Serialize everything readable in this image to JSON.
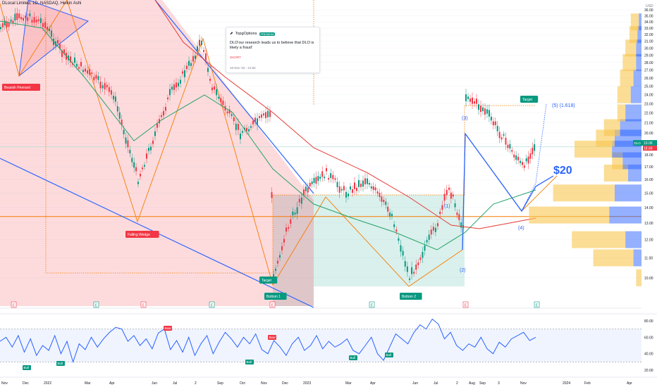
{
  "header": {
    "title": "DLocal Limited, 1D, NASDAQ, Heikin Ashi",
    "currency": "USD"
  },
  "idea_card": {
    "author": "TopgOptions",
    "badge": "PREMIUM",
    "text": "DLO'our research leads us to believe that DLO is likely a fraud'",
    "signal": "SHORT",
    "time": "16 Nov '22 - 21:52"
  },
  "annotations": {
    "bearish_pennant": "Bearish Pennant",
    "falling_wedge": "Falling Wedge",
    "target_low": "Target",
    "bottom1": "Bottom 1",
    "bottom2": "Bottom 2",
    "target_high": "Target",
    "wave1": "(1)",
    "wave2": "(2)",
    "wave3": "(3)",
    "wave4": "(4)",
    "wave5": "(5) (1.618)",
    "price_target": "$20"
  },
  "price_labels": {
    "ticker": "DLO",
    "last": "19.06",
    "prev": "18.69"
  },
  "colors": {
    "up": "#089981",
    "down": "#f23645",
    "ma_green": "#26a269",
    "ma_red": "#e53935",
    "trendline_blue": "#2962ff",
    "orange": "#f57c00",
    "rsi": "#2962ff",
    "volume_profile_up": "#2962ff",
    "volume_profile_down": "#f9c74f"
  },
  "chart_data": [
    {
      "type": "candlestick",
      "title": "DLocal Limited, 1D, NASDAQ, Heikin Ashi",
      "ylabel": "USD",
      "y_scale": "log",
      "ylim": [
        9.5,
        37.5
      ],
      "y_ticks": [
        "10.00",
        "11.00",
        "12.00",
        "13.00",
        "14.00",
        "15.00",
        "16.00",
        "17.00",
        "18.00",
        "19.00",
        "20.00",
        "21.00",
        "22.00",
        "23.00",
        "24.00",
        "25.00",
        "26.00",
        "27.00",
        "28.00",
        "29.00",
        "30.00",
        "31.00",
        "32.00",
        "33.00",
        "34.00",
        "35.00",
        "36.00"
      ],
      "x_ticks": [
        "Nov",
        "Dec",
        "2022",
        "Mar",
        "Apr",
        "Jun",
        "Jul",
        "2",
        "Sep",
        "Oct",
        "Nov",
        "Dec",
        "2023",
        "Mar",
        "Apr",
        "Jun",
        "Jul",
        "2",
        "Aug",
        "Sep",
        "3",
        "Nov",
        "2024",
        "Feb",
        "Apr"
      ],
      "price_path": [
        {
          "t": "Nov 2021",
          "v": 33
        },
        {
          "t": "Dec 2021",
          "v": 35
        },
        {
          "t": "Jan 2022",
          "v": 34
        },
        {
          "t": "Feb 2022",
          "v": 29
        },
        {
          "t": "Mar 2022",
          "v": 27
        },
        {
          "t": "Apr 2022",
          "v": 24
        },
        {
          "t": "May 2022",
          "v": 16
        },
        {
          "t": "Jun 2022",
          "v": 24
        },
        {
          "t": "Jul 2022",
          "v": 28
        },
        {
          "t": "Aug 2022",
          "v": 31
        },
        {
          "t": "Sep 2022",
          "v": 25
        },
        {
          "t": "Oct 2022",
          "v": 20
        },
        {
          "t": "Mid Nov 2022",
          "v": 22
        },
        {
          "t": "Nov 16 2022",
          "v": 10
        },
        {
          "t": "Dec 2022",
          "v": 12.5
        },
        {
          "t": "Jan 2023",
          "v": 15
        },
        {
          "t": "Feb 2023",
          "v": 16.5
        },
        {
          "t": "Mar 2023",
          "v": 15
        },
        {
          "t": "Apr 2023",
          "v": 16
        },
        {
          "t": "May 2023",
          "v": 13.5
        },
        {
          "t": "Jun 2023",
          "v": 10
        },
        {
          "t": "Jul 2023",
          "v": 13
        },
        {
          "t": "Aug 2023",
          "v": 15.5
        },
        {
          "t": "Aug 2023 low",
          "v": 12.6
        },
        {
          "t": "Aug 2023 spike",
          "v": 24
        },
        {
          "t": "Sep 2023",
          "v": 22
        },
        {
          "t": "Oct 2023",
          "v": 17
        },
        {
          "t": "Nov 2023",
          "v": 19.06
        }
      ],
      "last_price": 19.06,
      "previous_close": 18.69,
      "horizontal_levels": [
        13.4,
        18.7
      ],
      "projected_target": 20,
      "fib_target": 27
    },
    {
      "type": "bar",
      "title": "Volume profile",
      "values": [
        {
          "price": 10.0,
          "up": 0,
          "down": 4
        },
        {
          "price": 11.0,
          "up": 6,
          "down": 30
        },
        {
          "price": 12.0,
          "up": 12,
          "down": 40
        },
        {
          "price": 13.5,
          "up": 24,
          "down": 60
        },
        {
          "price": 15.0,
          "up": 20,
          "down": 46
        },
        {
          "price": 16.5,
          "up": 10,
          "down": 18
        },
        {
          "price": 17.5,
          "up": 14,
          "down": 8
        },
        {
          "price": 18.5,
          "up": 22,
          "down": 28
        },
        {
          "price": 19.5,
          "up": 20,
          "down": 14
        },
        {
          "price": 20.5,
          "up": 16,
          "down": 12
        },
        {
          "price": 22.0,
          "up": 12,
          "down": 6
        },
        {
          "price": 24.0,
          "up": 8,
          "down": 10
        },
        {
          "price": 26.0,
          "up": 6,
          "down": 10
        },
        {
          "price": 28.0,
          "up": 4,
          "down": 10
        },
        {
          "price": 30.0,
          "up": 4,
          "down": 8
        },
        {
          "price": 32.0,
          "up": 3,
          "down": 6
        },
        {
          "price": 34.0,
          "up": 2,
          "down": 6
        }
      ]
    },
    {
      "type": "line",
      "title": "RSI",
      "ylim": [
        15,
        85
      ],
      "y_ticks": [
        "20.00",
        "40.00",
        "60.00",
        "80.00"
      ],
      "bands": [
        30,
        70
      ],
      "values": [
        55,
        60,
        48,
        62,
        42,
        58,
        38,
        50,
        44,
        62,
        40,
        55,
        30,
        52,
        45,
        60,
        48,
        58,
        66,
        72,
        70,
        55,
        62,
        50,
        58,
        46,
        65,
        70,
        45,
        56,
        42,
        60,
        38,
        52,
        62,
        40,
        54,
        66,
        58,
        48,
        60,
        52,
        64,
        45,
        40,
        56,
        48,
        38,
        52,
        60,
        44,
        50,
        62,
        46,
        55,
        48,
        52,
        58,
        44,
        40,
        50,
        60,
        40,
        32,
        48,
        64,
        58,
        52,
        66,
        75,
        70,
        82,
        76,
        58,
        66,
        50,
        44,
        52,
        48,
        60,
        46,
        40,
        54,
        48,
        58,
        62,
        66,
        56,
        60
      ]
    }
  ],
  "rsi_labels": {
    "bull": "Bull",
    "bear": "Bear"
  },
  "earnings_marker": "E"
}
